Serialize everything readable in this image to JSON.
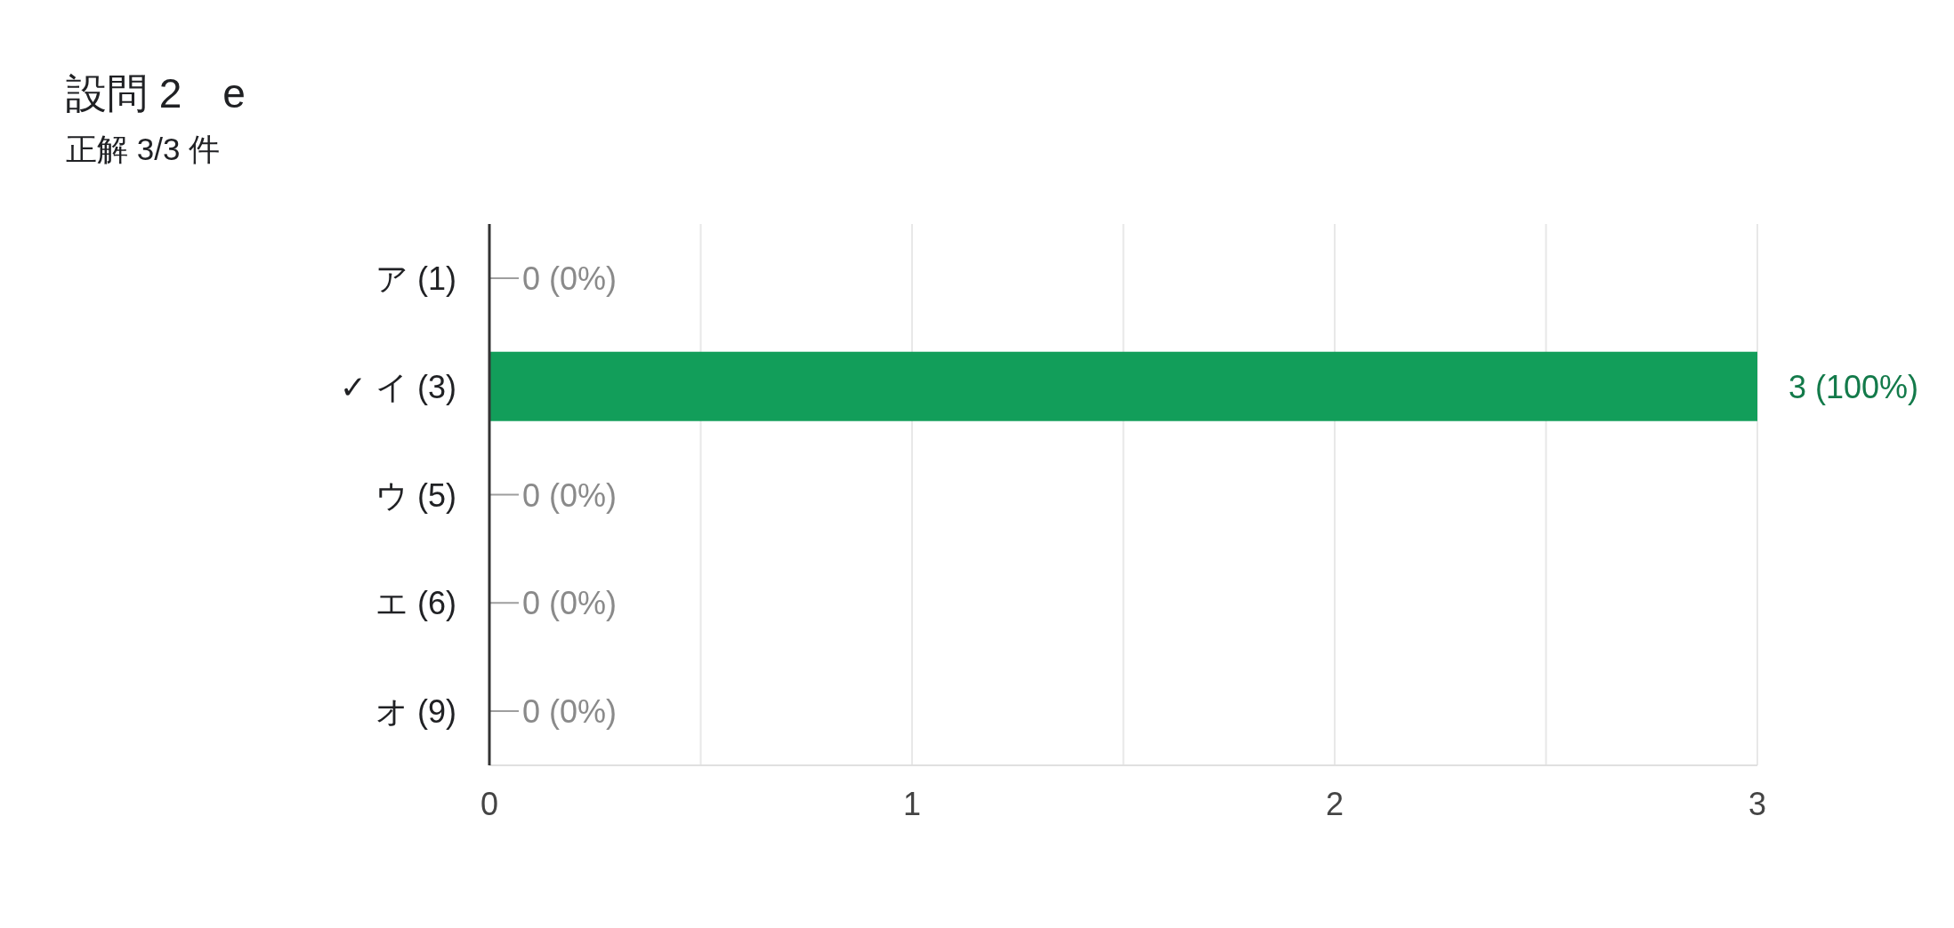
{
  "chart_data": {
    "type": "bar",
    "orientation": "horizontal",
    "title": "設問 2　e",
    "subtitle": "正解 3/3 件",
    "categories": [
      "ア (1)",
      "✓ イ (3)",
      "ウ (5)",
      "エ (6)",
      "オ (9)"
    ],
    "values": [
      0,
      3,
      0,
      0,
      0
    ],
    "color": "#129e5a",
    "value_labels": [
      "0 (0%)",
      "3 (100%)",
      "0 (0%)",
      "0 (0%)",
      "0 (0%)"
    ],
    "xlim": [
      0,
      3
    ],
    "xticks": [
      0,
      {
        "value": 0.5,
        "label": null
      },
      1,
      {
        "value": 1.5,
        "label": null
      },
      2,
      {
        "value": 2.5,
        "label": null
      },
      3
    ],
    "grid": "x"
  }
}
